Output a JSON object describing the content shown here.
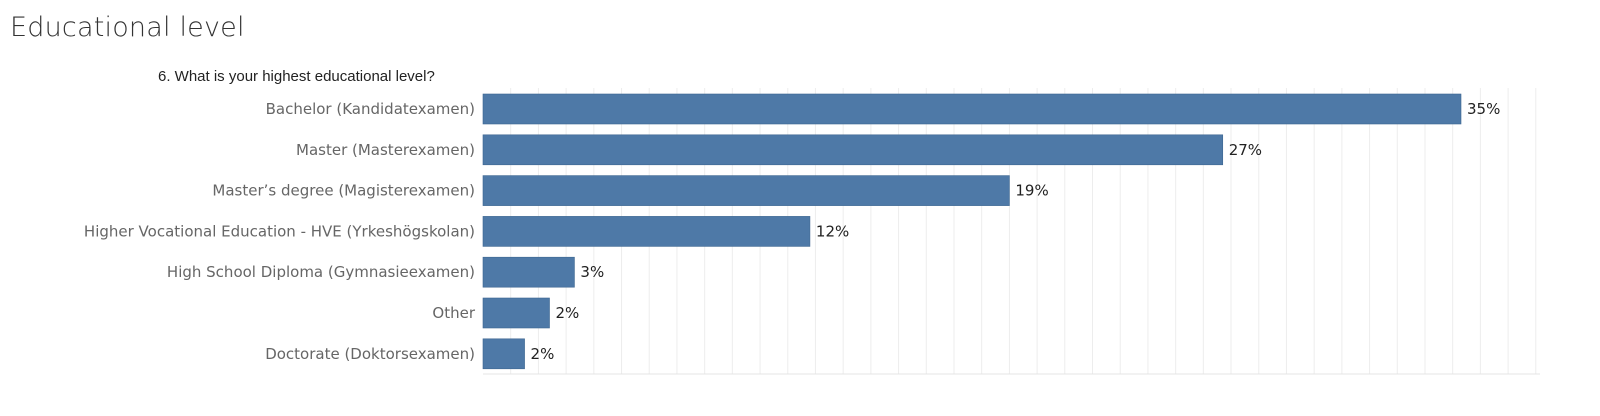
{
  "header": {
    "title": "Educational level"
  },
  "chart_data": {
    "type": "bar",
    "orientation": "horizontal",
    "title": "6. What is your highest educational level?",
    "xlabel": "",
    "ylabel": "",
    "categories": [
      "Bachelor (Kandidatexamen)",
      "Master (Masterexamen)",
      "Master’s degree (Magisterexamen)",
      "Higher Vocational Education - HVE (Yrkeshögskolan)",
      "High School Diploma (Gymnasieexamen)",
      "Other",
      "Doctorate (Doktorsexamen)"
    ],
    "values": [
      35.3,
      26.7,
      19.0,
      11.8,
      3.3,
      2.4,
      1.5
    ],
    "value_labels": [
      "35%",
      "27%",
      "19%",
      "12%",
      "3%",
      "2%",
      "2%"
    ],
    "xlim": [
      0,
      38
    ],
    "grid": true,
    "legend": "none",
    "bar_color": "#4e79a7"
  }
}
